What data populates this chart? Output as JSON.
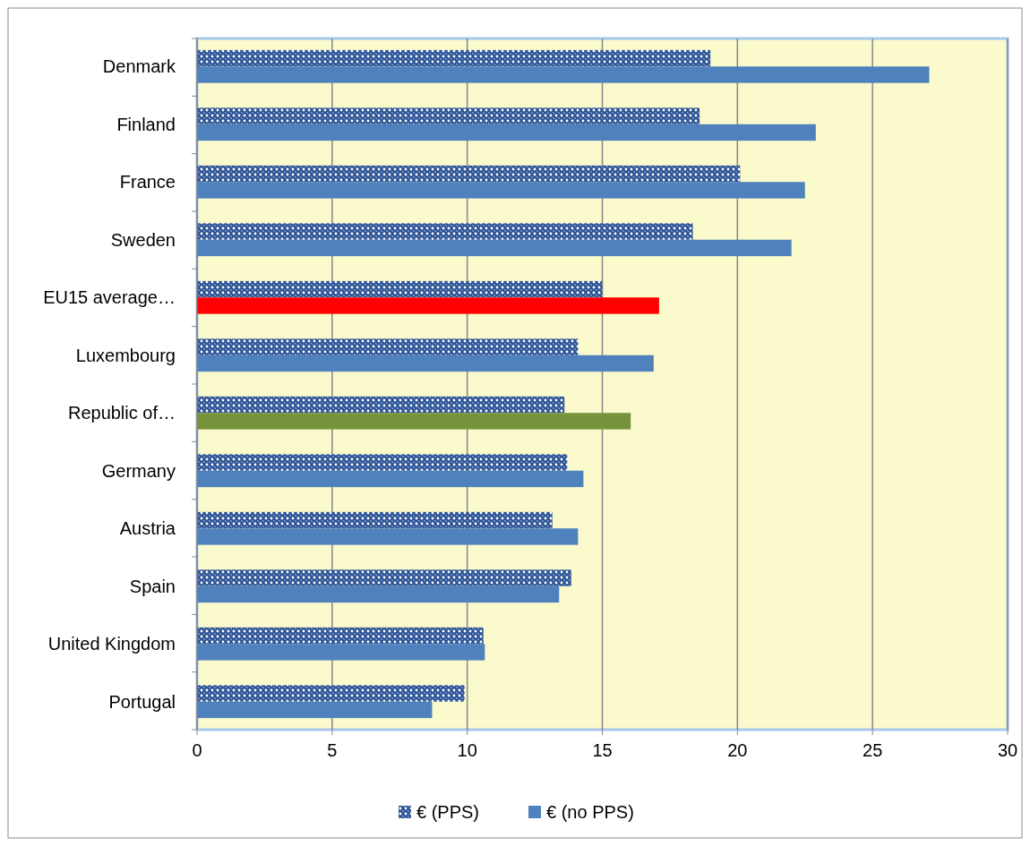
{
  "chart_data": {
    "type": "bar",
    "orientation": "horizontal",
    "categories": [
      "Denmark",
      "Finland",
      "France",
      "Sweden",
      "EU15 average…",
      "Luxembourg",
      "Republic of…",
      "Germany",
      "Austria",
      "Spain",
      "United Kingdom",
      "Portugal"
    ],
    "series": [
      {
        "name": "€ (PPS)",
        "color": "#2e5597",
        "values": [
          19.0,
          18.6,
          20.1,
          18.35,
          15.0,
          14.1,
          13.6,
          13.7,
          13.15,
          13.85,
          10.6,
          9.9
        ]
      },
      {
        "name": "€ (no PPS)",
        "color": "#4f81bd",
        "colors": [
          "#4f81bd",
          "#4f81bd",
          "#4f81bd",
          "#4f81bd",
          "#ff0000",
          "#4f81bd",
          "#77933c",
          "#4f81bd",
          "#4f81bd",
          "#4f81bd",
          "#4f81bd",
          "#4f81bd"
        ],
        "values": [
          27.1,
          22.9,
          22.5,
          22.0,
          17.1,
          16.9,
          16.05,
          14.3,
          14.1,
          13.4,
          10.65,
          8.7
        ]
      }
    ],
    "xlim": [
      0,
      30
    ],
    "xticks": [
      0,
      5,
      10,
      15,
      20,
      25,
      30
    ],
    "grid": "x",
    "legend": "bottom"
  }
}
